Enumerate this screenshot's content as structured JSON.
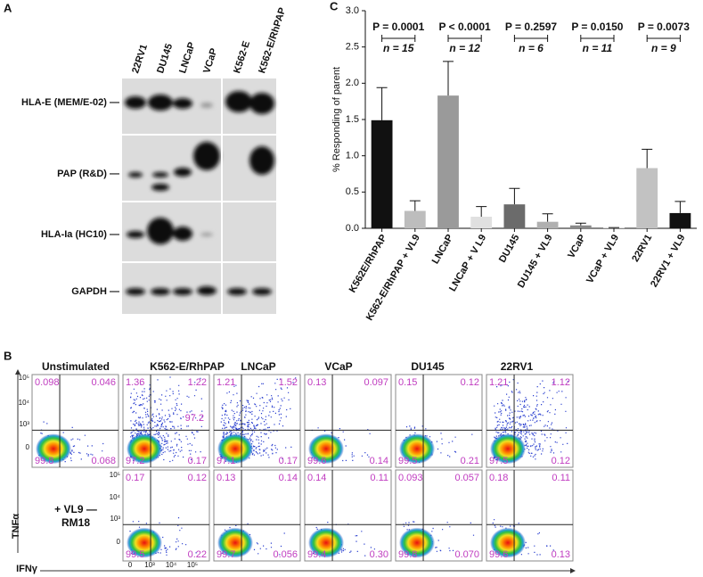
{
  "panel_a": {
    "label": "A",
    "lanes": [
      "22RV1",
      "DU145",
      "LNCaP",
      "VCaP",
      "K562-E",
      "K562-E/RhPAP"
    ],
    "rows": [
      "HLA-E (MEM/E-02) —",
      "PAP (R&D) —",
      "HLA-Ia (HC10) —",
      "GAPDH —"
    ]
  },
  "panel_b": {
    "label": "B",
    "columns": [
      "Unstimulated",
      "K562-E/RhPAP",
      "LNCaP",
      "VCaP",
      "DU145",
      "22RV1"
    ],
    "row2_label": [
      "+ VL9 —",
      "RM18"
    ],
    "y_axis": "TNFα",
    "x_axis": "IFNγ",
    "y_ticks": [
      "10⁵",
      "10⁴",
      "10³",
      "0"
    ],
    "x_ticks": [
      "0",
      "10³",
      "10⁴",
      "10⁵"
    ],
    "top": [
      {
        "tl": "0.098",
        "tr": "0.046",
        "bl": "99.8",
        "br": "0.068"
      },
      {
        "tl": "1.36",
        "tr": "1.22",
        "bl": "97.2",
        "br": "0.17",
        "mid": "97.2"
      },
      {
        "tl": "1.21",
        "tr": "1.52",
        "bl": "97.1",
        "br": "0.17"
      },
      {
        "tl": "0.13",
        "tr": "0.097",
        "bl": "99.6",
        "br": "0.14"
      },
      {
        "tl": "0.15",
        "tr": "0.12",
        "bl": "99.5",
        "br": "0.21"
      },
      {
        "tl": "1.21",
        "tr": "1.12",
        "bl": "97.5",
        "br": "0.12"
      }
    ],
    "bottom": [
      {
        "tl": "0.17",
        "tr": "0.12",
        "bl": "99.5",
        "br": "0.22"
      },
      {
        "tl": "0.13",
        "tr": "0.14",
        "bl": "99.7",
        "br": "0.056"
      },
      {
        "tl": "0.14",
        "tr": "0.11",
        "bl": "99.4",
        "br": "0.30"
      },
      {
        "tl": "0.093",
        "tr": "0.057",
        "bl": "99.8",
        "br": "0.070"
      },
      {
        "tl": "0.18",
        "tr": "0.11",
        "bl": "99.6",
        "br": "0.13"
      }
    ]
  },
  "chart_data": {
    "type": "bar",
    "panel_label": "C",
    "y_label": "% Responding of parent",
    "categories": [
      "K562E/RhPAP",
      "K562-E/RhPAP + VL9",
      "LNCaP",
      "LNCaP + V L9",
      "DU145",
      "DU145 + VL9",
      "VCaP",
      "VCaP + VL9",
      "22RV1",
      "22RV1 + VL9"
    ],
    "values": [
      1.49,
      0.24,
      1.83,
      0.16,
      0.33,
      0.09,
      0.04,
      0.01,
      0.83,
      0.21
    ],
    "errors": [
      0.45,
      0.14,
      0.47,
      0.14,
      0.22,
      0.11,
      0.03,
      0.0,
      0.26,
      0.16
    ],
    "colors": [
      "#111111",
      "#bdbdbd",
      "#9a9a9a",
      "#e0e0e0",
      "#6b6b6b",
      "#b0b0b0",
      "#8a8a8a",
      "#d8d8d8",
      "#c2c2c2",
      "#111111"
    ],
    "ylim": [
      0,
      3
    ],
    "yticks": [
      {
        "value": 0,
        "label": "0.0"
      },
      {
        "value": 0.5,
        "label": "0.5"
      },
      {
        "value": 1,
        "label": "1.0"
      },
      {
        "value": 1.5,
        "label": "1.5"
      },
      {
        "value": 2,
        "label": "2.0"
      },
      {
        "value": 2.5,
        "label": "2.5"
      },
      {
        "value": 3,
        "label": "3.0"
      }
    ],
    "comparisons": [
      {
        "p_label": "P = 0.0001",
        "n_label": "n = 15"
      },
      {
        "p_label": "P < 0.0001",
        "n_label": "n = 12"
      },
      {
        "p_label": "P = 0.2597",
        "n_label": "n = 6"
      },
      {
        "p_label": "P = 0.0150",
        "n_label": "n = 11"
      },
      {
        "p_label": "P = 0.0073",
        "n_label": "n = 9"
      }
    ]
  }
}
